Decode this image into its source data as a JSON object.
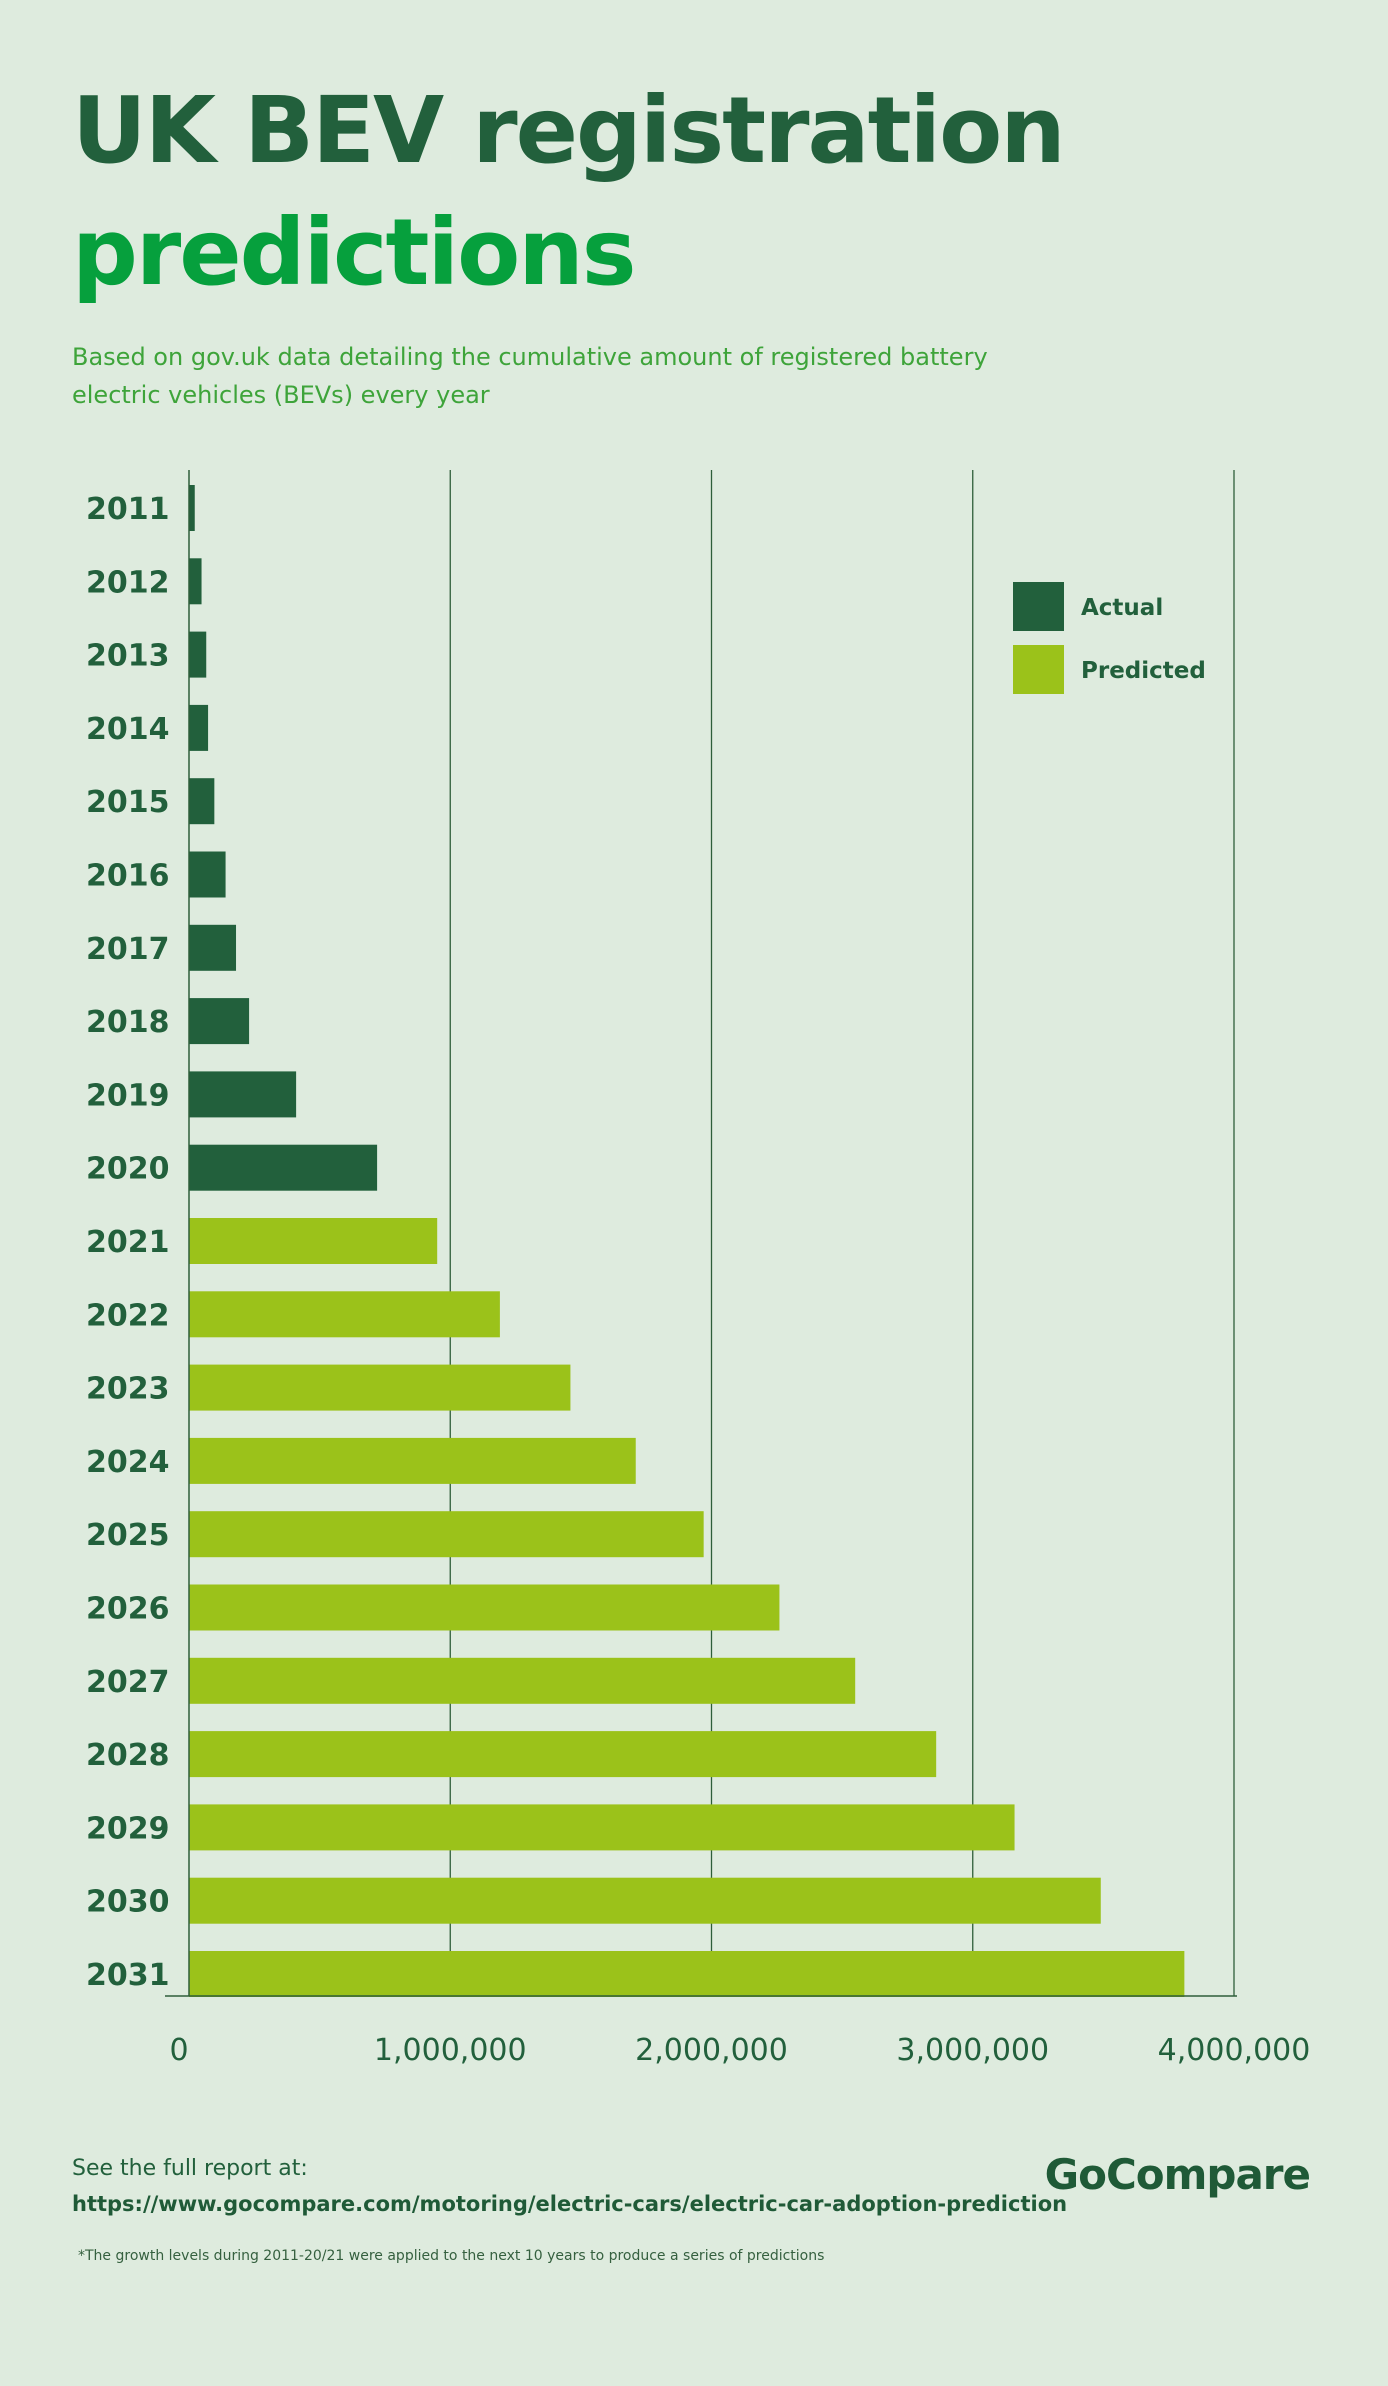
{
  "header": {
    "title_line1": "UK BEV registration",
    "title_line2": "predictions",
    "subtitle": "Based on gov.uk data detailing the cumulative amount of registered battery electric vehicles (BEVs) every year"
  },
  "colors": {
    "background": "#deebde",
    "actual": "#22603c",
    "predicted": "#9bc21a",
    "title_dark": "#22603c",
    "title_green": "#06a03d",
    "subtitle": "#3ea43a",
    "grid": "#2e5e3a"
  },
  "chart_data": {
    "type": "bar",
    "orientation": "horizontal",
    "categories": [
      "2011",
      "2012",
      "2013",
      "2014",
      "2015",
      "2016",
      "2017",
      "2018",
      "2019",
      "2020",
      "2021",
      "2022",
      "2023",
      "2024",
      "2025",
      "2026",
      "2027",
      "2028",
      "2029",
      "2030",
      "2031"
    ],
    "values": [
      22000,
      48000,
      66000,
      73000,
      97000,
      140000,
      180000,
      230000,
      410000,
      720000,
      950000,
      1190000,
      1460000,
      1710000,
      1970000,
      2260000,
      2550000,
      2860000,
      3160000,
      3490000,
      3810000
    ],
    "value_types": [
      "Actual",
      "Actual",
      "Actual",
      "Actual",
      "Actual",
      "Actual",
      "Actual",
      "Actual",
      "Actual",
      "Actual",
      "Predicted",
      "Predicted",
      "Predicted",
      "Predicted",
      "Predicted",
      "Predicted",
      "Predicted",
      "Predicted",
      "Predicted",
      "Predicted",
      "Predicted"
    ],
    "xlim": [
      0,
      4000000
    ],
    "x_ticks": [
      0,
      1000000,
      2000000,
      3000000,
      4000000
    ],
    "x_tick_labels": [
      "0",
      "1,000,000",
      "2,000,000",
      "3,000,000",
      "4,000,000"
    ],
    "xlabel": "",
    "ylabel": "",
    "grid": "vertical lines",
    "legend": {
      "placement": "top-right",
      "entries": [
        {
          "label": "Actual",
          "color": "#22603c"
        },
        {
          "label": "Predicted",
          "color": "#9bc21a"
        }
      ]
    }
  },
  "footer": {
    "see_report": "See the full report at:",
    "url": "https://www.gocompare.com/motoring/electric-cars/electric-car-adoption-prediction",
    "brand": "GoCompare",
    "footnote": "*The growth levels during 2011-20/21 were applied to the next 10 years to produce a series of predictions"
  }
}
